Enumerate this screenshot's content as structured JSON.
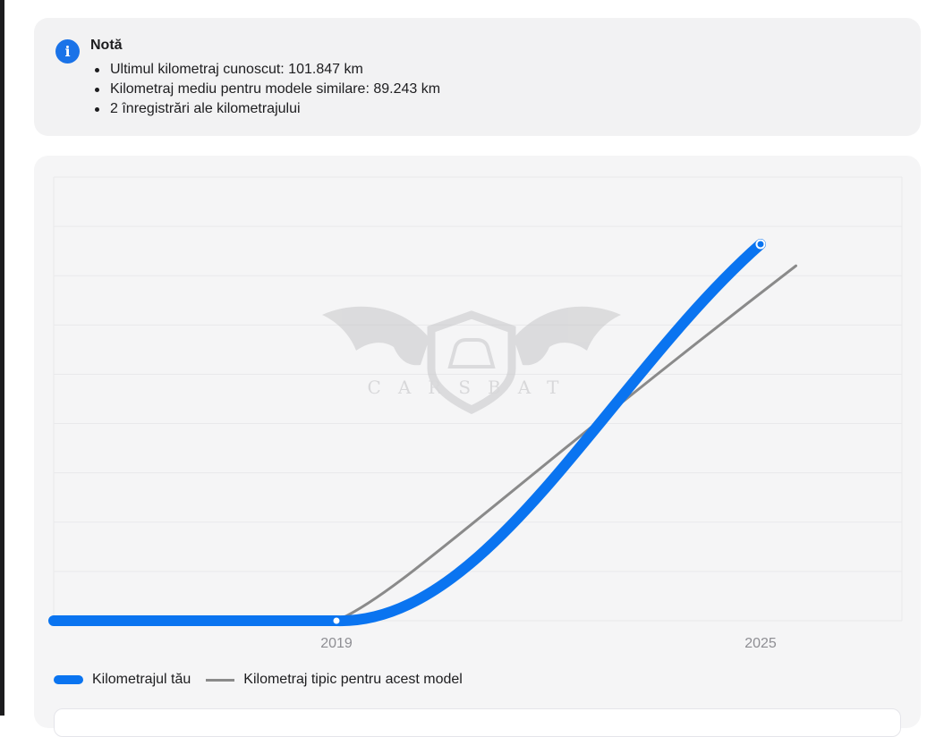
{
  "note": {
    "title": "Notă",
    "items": [
      "Ultimul kilometraj cunoscut: 101.847 km",
      "Kilometraj mediu pentru modele similare: 89.243 km",
      "2 înregistrări ale kilometrajului"
    ],
    "icon": "info-icon",
    "accent": "#1a73e8"
  },
  "watermark": {
    "text": "CARSBAT"
  },
  "chart_data": {
    "type": "line",
    "xlim": [
      2015,
      2027
    ],
    "ylim": [
      0,
      120000
    ],
    "x_ticks": [
      2019,
      2025
    ],
    "x_tick_labels": [
      "2019",
      "2025"
    ],
    "grid": "horizontal",
    "legend_position": "bottom-left",
    "series": [
      {
        "name": "Kilometrajul tău",
        "color": "#0a74f0",
        "points": [
          [
            2015,
            0
          ],
          [
            2019,
            0
          ],
          [
            2025,
            101847
          ]
        ]
      },
      {
        "name": "Kilometraj tipic pentru acest model",
        "color": "#8a8a8a",
        "points": [
          [
            2019,
            0
          ],
          [
            2025.5,
            96000
          ]
        ]
      }
    ]
  }
}
